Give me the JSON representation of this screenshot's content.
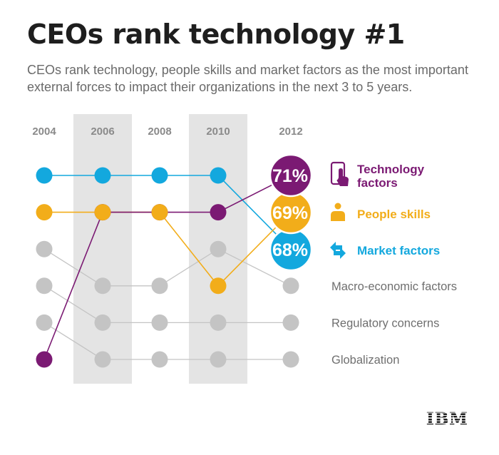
{
  "title": "CEOs rank technology #1",
  "subtitle": "CEOs rank technology, people skills and market factors as the most important external forces to impact their organizations in the next 3 to 5 years.",
  "logo_text": "IBM",
  "chart_data": {
    "type": "bump",
    "years": [
      "2004",
      "2006",
      "2008",
      "2010",
      "2012"
    ],
    "highlight_years": [
      "2006",
      "2010"
    ],
    "ranks_per_year": 6,
    "series": [
      {
        "name": "Technology factors",
        "ranks": [
          6,
          2,
          2,
          2,
          1
        ],
        "value_2012": "71%",
        "color": "#7b1a73",
        "icon": "smartphone-touch-icon",
        "highlight": true
      },
      {
        "name": "People skills",
        "ranks": [
          2,
          2,
          2,
          4,
          2
        ],
        "value_2012": "69%",
        "color": "#f2ad1a",
        "icon": "person-icon",
        "highlight": true
      },
      {
        "name": "Market factors",
        "ranks": [
          1,
          1,
          1,
          1,
          3
        ],
        "value_2012": "68%",
        "color": "#13a8de",
        "icon": "market-arrows-icon",
        "highlight": true
      },
      {
        "name": "Macro-economic factors",
        "ranks": [
          3,
          4,
          4,
          3,
          4
        ],
        "color": "#c4c4c4",
        "highlight": false
      },
      {
        "name": "Regulatory concerns",
        "ranks": [
          4,
          5,
          5,
          5,
          5
        ],
        "color": "#c4c4c4",
        "highlight": false
      },
      {
        "name": "Globalization",
        "ranks": [
          5,
          6,
          6,
          6,
          6
        ],
        "color": "#c4c4c4",
        "highlight": false
      }
    ]
  }
}
